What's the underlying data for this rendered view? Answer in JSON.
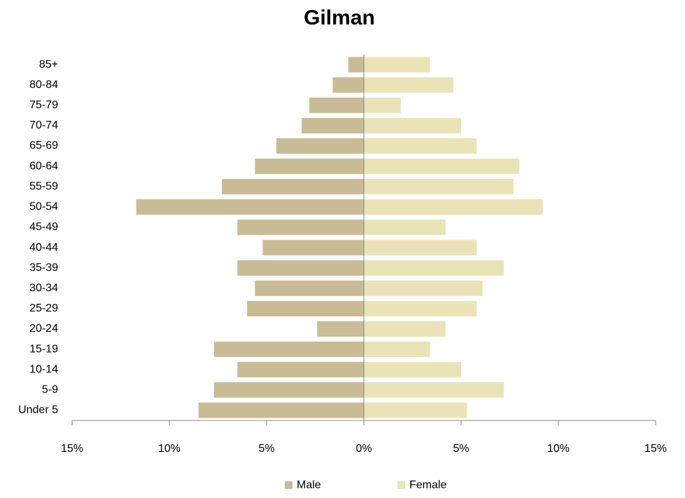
{
  "chart_data": {
    "type": "bar",
    "orientation": "horizontal",
    "stacking": "diverging",
    "title": "Gilman",
    "categories": [
      "Under 5",
      "5-9",
      "10-14",
      "15-19",
      "20-24",
      "25-29",
      "30-34",
      "35-39",
      "40-44",
      "45-49",
      "50-54",
      "55-59",
      "60-64",
      "65-69",
      "70-74",
      "75-79",
      "80-84",
      "85+"
    ],
    "series": [
      {
        "name": "Male",
        "color": "#c8bb96",
        "values": [
          -8.5,
          -7.7,
          -6.5,
          -7.7,
          -2.4,
          -6.0,
          -5.6,
          -6.5,
          -5.2,
          -6.5,
          -11.7,
          -7.3,
          -5.6,
          -4.5,
          -3.2,
          -2.8,
          -1.6,
          -0.8
        ]
      },
      {
        "name": "Female",
        "color": "#ebe3b8",
        "values": [
          5.3,
          7.2,
          5.0,
          3.4,
          4.2,
          5.8,
          6.1,
          7.2,
          5.8,
          4.2,
          9.2,
          7.7,
          8.0,
          5.8,
          5.0,
          1.9,
          4.6,
          3.4
        ]
      }
    ],
    "xlim": [
      -15,
      15
    ],
    "xticks": [
      {
        "value": -15,
        "label": "15%"
      },
      {
        "value": -10,
        "label": "10%"
      },
      {
        "value": -5,
        "label": "5%"
      },
      {
        "value": 0,
        "label": "0%"
      },
      {
        "value": 5,
        "label": "5%"
      },
      {
        "value": 10,
        "label": "10%"
      },
      {
        "value": 15,
        "label": "15%"
      }
    ],
    "legend": "bottom"
  }
}
